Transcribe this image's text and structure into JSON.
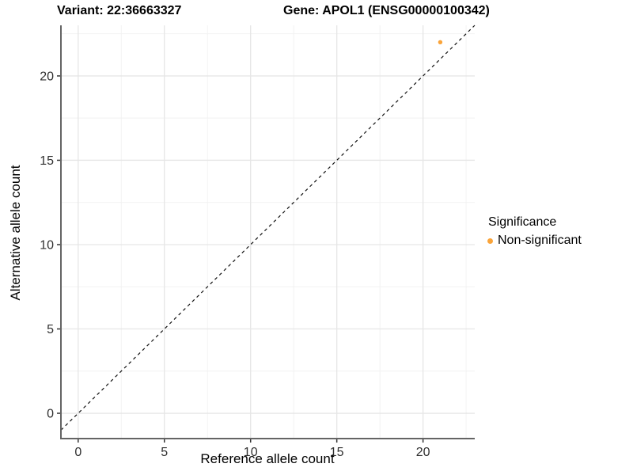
{
  "titles": {
    "variant": "Variant: 22:36663327",
    "gene": "Gene: APOL1 (ENSG00000100342)"
  },
  "axes": {
    "x_label": "Reference allele count",
    "y_label": "Alternative allele count"
  },
  "legend": {
    "title": "Significance",
    "items": [
      {
        "label": "Non-significant",
        "color": "#FAA43A"
      }
    ]
  },
  "colors": {
    "point_orange": "#FAA43A",
    "axis_line": "#646464",
    "tick_mark": "#333333",
    "tick_label": "#303030",
    "grid_major": "#E6E6E6",
    "grid_minor": "#F2F2F2",
    "identity_line": "#111111"
  },
  "chart_data": {
    "type": "scatter",
    "title": "Variant: 22:36663327   Gene: APOL1 (ENSG00000100342)",
    "xlabel": "Reference allele count",
    "ylabel": "Alternative allele count",
    "xlim": [
      -1,
      23
    ],
    "ylim": [
      -1.5,
      23
    ],
    "x_ticks": [
      0,
      5,
      10,
      15,
      20
    ],
    "y_ticks": [
      0,
      5,
      10,
      15,
      20
    ],
    "x_minor_ticks": [
      2.5,
      7.5,
      12.5,
      17.5,
      22.5
    ],
    "y_minor_ticks": [
      2.5,
      7.5,
      12.5,
      17.5,
      22.5
    ],
    "grid": true,
    "legend_position": "right",
    "identity_line": {
      "style": "dashed",
      "x0": -1,
      "y0": -1,
      "x1": 23,
      "y1": 23
    },
    "series": [
      {
        "name": "Non-significant",
        "color": "#FAA43A",
        "points": [
          {
            "x": 21,
            "y": 22
          }
        ]
      }
    ]
  }
}
